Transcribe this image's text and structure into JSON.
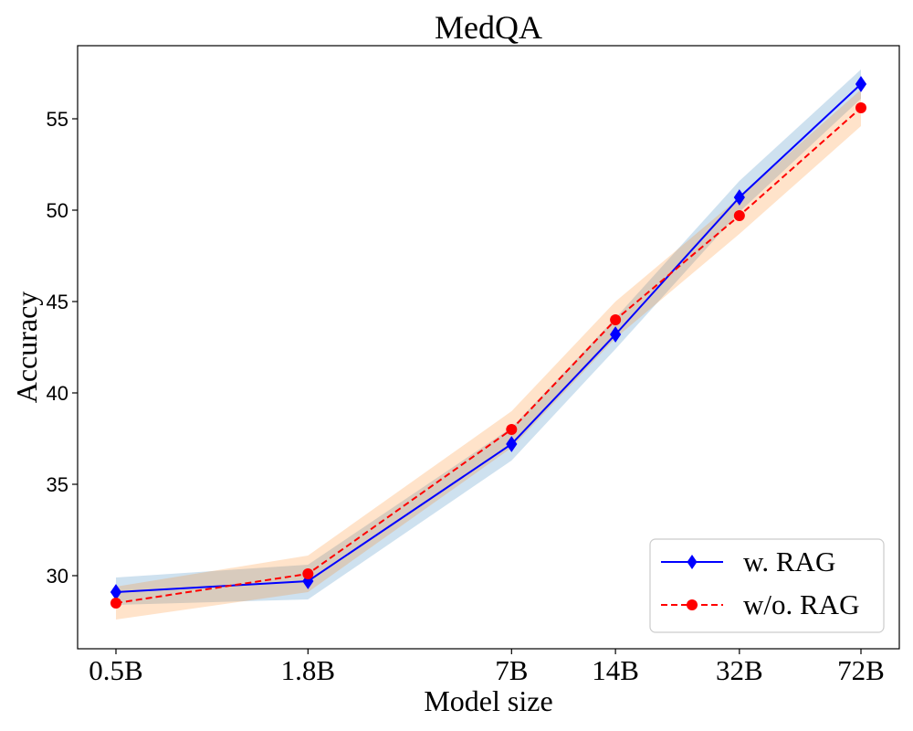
{
  "chart_data": {
    "type": "line",
    "title": "MedQA",
    "xlabel": "Model size",
    "ylabel": "Accuracy",
    "categories": [
      "0.5B",
      "1.8B",
      "7B",
      "14B",
      "32B",
      "72B"
    ],
    "x_positions_log_params_b": [
      0.5,
      1.8,
      7,
      14,
      32,
      72
    ],
    "ylim": [
      26,
      59
    ],
    "yticks": [
      30,
      35,
      40,
      45,
      50,
      55
    ],
    "legend_location": "lower-right",
    "series": [
      {
        "name": "w. RAG",
        "color": "#0000ff",
        "line_style": "solid",
        "marker": "diamond",
        "band_color": "#1f77b4",
        "values": [
          29.1,
          29.7,
          37.2,
          43.2,
          50.7,
          56.9
        ],
        "band_low": [
          28.4,
          28.7,
          36.3,
          42.4,
          49.9,
          56.1
        ],
        "band_high": [
          29.9,
          30.6,
          38.1,
          44.1,
          51.6,
          57.7
        ]
      },
      {
        "name": "w/o. RAG",
        "color": "#ff0000",
        "line_style": "dashed",
        "marker": "circle",
        "band_color": "#ff7f0e",
        "values": [
          28.5,
          30.1,
          38.0,
          44.0,
          49.7,
          55.6
        ],
        "band_low": [
          27.6,
          29.1,
          37.0,
          43.0,
          48.7,
          54.6
        ],
        "band_high": [
          29.4,
          31.1,
          39.0,
          45.0,
          50.7,
          56.6
        ]
      }
    ]
  }
}
